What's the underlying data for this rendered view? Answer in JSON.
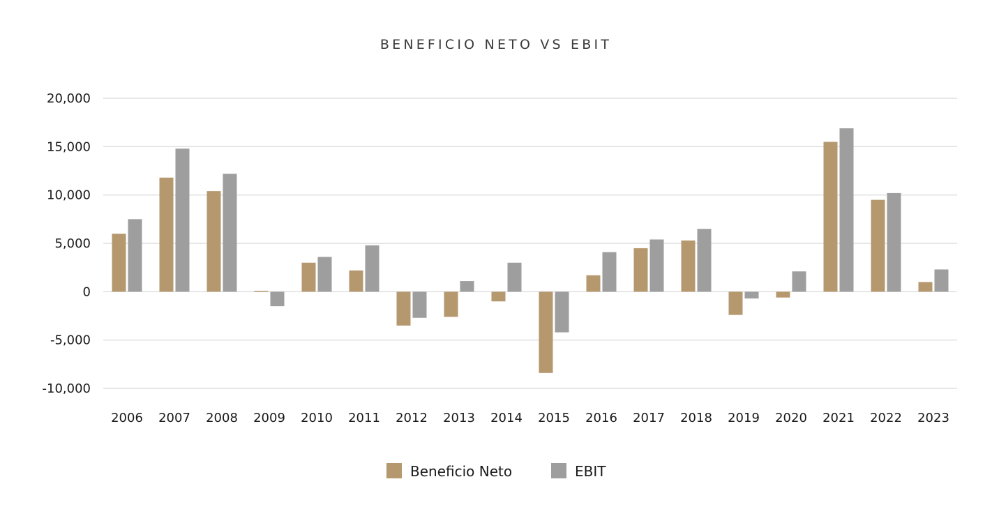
{
  "chart_data": {
    "type": "bar",
    "title": "BENEFICIO NETO VS EBIT",
    "xlabel": "",
    "ylabel": "",
    "categories": [
      "2006",
      "2007",
      "2008",
      "2009",
      "2010",
      "2011",
      "2012",
      "2013",
      "2014",
      "2015",
      "2016",
      "2017",
      "2018",
      "2019",
      "2020",
      "2021",
      "2022",
      "2023"
    ],
    "series": [
      {
        "name": "Beneficio Neto",
        "color": "#b5986e",
        "values": [
          6000,
          11800,
          10400,
          100,
          3000,
          2200,
          -3500,
          -2600,
          -1000,
          -8400,
          1700,
          4500,
          5300,
          -2400,
          -600,
          15500,
          9500,
          1000
        ]
      },
      {
        "name": "EBIT",
        "color": "#9e9e9e",
        "values": [
          7500,
          14800,
          12200,
          -1500,
          3600,
          4800,
          -2700,
          1100,
          3000,
          -4200,
          4100,
          5400,
          6500,
          -700,
          2100,
          16900,
          10200,
          2300
        ]
      }
    ],
    "ylim": [
      -10000,
      20000
    ],
    "yticks": [
      20000,
      15000,
      10000,
      5000,
      0,
      -5000,
      -10000
    ],
    "ytick_labels": [
      "20,000",
      "15,000",
      "10,000",
      "5,000",
      "0",
      "-5,000",
      "-10,000"
    ],
    "grid": true,
    "legend": {
      "placement": "bottom-center",
      "entries": [
        "Beneficio Neto",
        "EBIT"
      ]
    }
  }
}
